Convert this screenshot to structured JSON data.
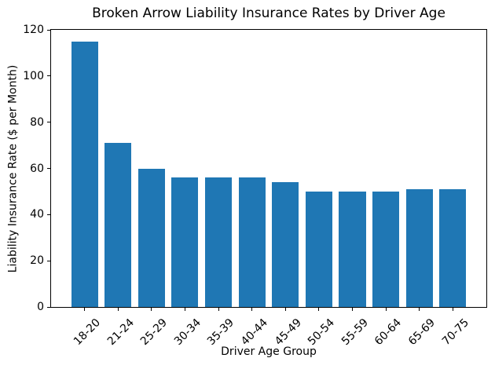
{
  "chart_data": {
    "type": "bar",
    "title": "Broken Arrow Liability Insurance Rates by Driver Age",
    "xlabel": "Driver Age Group",
    "ylabel": "Liability Insurance Rate ($ per Month)",
    "categories": [
      "18-20",
      "21-24",
      "25-29",
      "30-34",
      "35-39",
      "40-44",
      "45-49",
      "50-54",
      "55-59",
      "60-64",
      "65-69",
      "70-75"
    ],
    "values": [
      115,
      71,
      60,
      56,
      56,
      56,
      54,
      50,
      50,
      50,
      51,
      51
    ],
    "ylim": [
      0,
      120
    ],
    "yticks": [
      0,
      20,
      40,
      60,
      80,
      100,
      120
    ],
    "bar_color": "#1f77b4",
    "bar_width_fraction": 0.8,
    "grid": false,
    "legend": null
  }
}
